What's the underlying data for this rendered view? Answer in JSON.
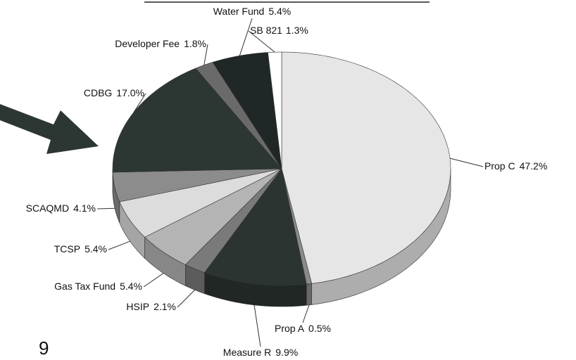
{
  "chart_data": {
    "type": "pie",
    "categories": [
      "Prop C",
      "Prop A",
      "Measure R",
      "HSIP",
      "Gas Tax Fund",
      "TCSP",
      "SCAQMD",
      "CDBG",
      "Developer Fee",
      "Water Fund",
      "SB 821"
    ],
    "values": [
      47.2,
      0.5,
      9.9,
      2.1,
      5.4,
      5.4,
      4.1,
      17.0,
      1.8,
      5.4,
      1.3
    ],
    "value_labels": [
      "47.2%",
      "0.5%",
      "9.9%",
      "2.1%",
      "5.4%",
      "5.4%",
      "4.1%",
      "17.0%",
      "1.8%",
      "5.4%",
      "1.3%"
    ],
    "colors": [
      "#e6e6e6",
      "#8a8a8a",
      "#2b3431",
      "#7a7a7a",
      "#b4b4b4",
      "#dcdcdc",
      "#8c8c8c",
      "#2c3633",
      "#6a6a6a",
      "#1f2826",
      "#ffffff"
    ]
  },
  "page_number": "9"
}
